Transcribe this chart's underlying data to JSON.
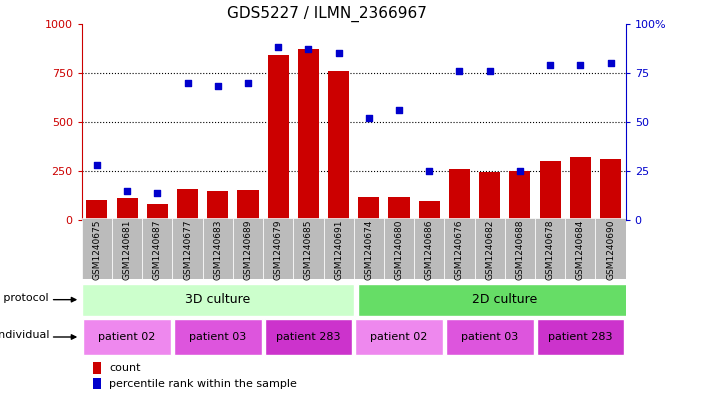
{
  "title": "GDS5227 / ILMN_2366967",
  "samples": [
    "GSM1240675",
    "GSM1240681",
    "GSM1240687",
    "GSM1240677",
    "GSM1240683",
    "GSM1240689",
    "GSM1240679",
    "GSM1240685",
    "GSM1240691",
    "GSM1240674",
    "GSM1240680",
    "GSM1240686",
    "GSM1240676",
    "GSM1240682",
    "GSM1240688",
    "GSM1240678",
    "GSM1240684",
    "GSM1240690"
  ],
  "counts": [
    100,
    110,
    80,
    160,
    150,
    155,
    840,
    870,
    760,
    120,
    120,
    95,
    260,
    245,
    250,
    300,
    320,
    310
  ],
  "percentiles": [
    28,
    15,
    14,
    70,
    68,
    70,
    88,
    87,
    85,
    52,
    56,
    25,
    76,
    76,
    25,
    79,
    79,
    80
  ],
  "bar_color": "#cc0000",
  "dot_color": "#0000cc",
  "ylim_left": [
    0,
    1000
  ],
  "ylim_right": [
    0,
    100
  ],
  "yticks_left": [
    0,
    250,
    500,
    750,
    1000
  ],
  "yticks_right": [
    0,
    25,
    50,
    75,
    100
  ],
  "grid_values": [
    250,
    500,
    750
  ],
  "growth_protocol_label": "growth protocol",
  "individual_label": "individual",
  "protocol_3d": "3D culture",
  "protocol_2d": "2D culture",
  "protocol_3d_color": "#ccffcc",
  "protocol_2d_color": "#66dd66",
  "patient_colors": {
    "patient 02": "#ee88ee",
    "patient 03": "#dd55dd",
    "patient 283": "#cc33cc"
  },
  "legend_count_label": "count",
  "legend_percentile_label": "percentile rank within the sample",
  "title_fontsize": 11,
  "axis_label_color_left": "#cc0000",
  "axis_label_color_right": "#0000cc",
  "sample_bg_color": "#bbbbbb",
  "patient_groups": [
    [
      0,
      2,
      "patient 02"
    ],
    [
      3,
      5,
      "patient 03"
    ],
    [
      6,
      8,
      "patient 283"
    ],
    [
      9,
      11,
      "patient 02"
    ],
    [
      12,
      14,
      "patient 03"
    ],
    [
      15,
      17,
      "patient 283"
    ]
  ]
}
